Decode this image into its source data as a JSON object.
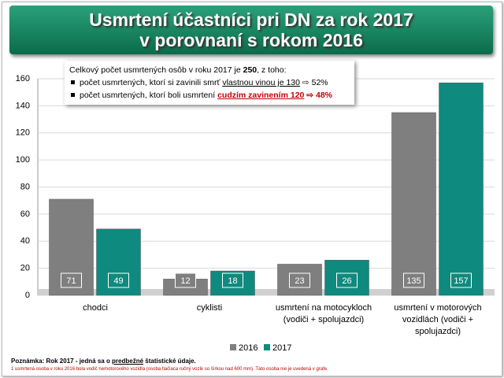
{
  "chart_data": {
    "type": "bar",
    "title": [
      "Usmrtení účastníci pri DN za rok 2017",
      "v porovnaní s rokom 2016"
    ],
    "annotation": {
      "intro": [
        "Celkový počet usmrtených osôb v roku 2017 je ",
        "250",
        ", z toho:"
      ],
      "bullets": [
        [
          "počet usmrtených, ktorí si zavinili smrť ",
          "vlastnou vinou je 130",
          " ⇨ 52%"
        ],
        [
          "počet usmrtených, ktorí boli usmrtení ",
          "cudzím zavinením 120",
          " ⇨ 48%"
        ]
      ]
    },
    "categories": [
      "chodci",
      "cyklisti",
      "usmrtení na motocykloch (vodiči + spolujazdci)",
      "usmrtení v motorových vozidlách (vodiči + spolujazdci)"
    ],
    "series": [
      {
        "name": "2016",
        "color": "#7f7f7f",
        "values": [
          71,
          12,
          23,
          135
        ]
      },
      {
        "name": "2017",
        "color": "#0f8a7e",
        "values": [
          49,
          18,
          26,
          157
        ]
      }
    ],
    "ylim": [
      0,
      160
    ],
    "yticks": [
      0,
      20,
      40,
      60,
      80,
      100,
      120,
      140,
      160
    ],
    "grid": true,
    "notes": [
      [
        "Poznámka: Rok 2017 - jedná sa o ",
        "predbežné",
        " štatistické údaje."
      ],
      "1 usmrtená osoba v roku 2016 bola vodič nemotorového vozidla (osoba tlačiaca ručný vozík so šírkou nad 600 mm). Táto osoba nie je uvedená v grafe."
    ]
  }
}
